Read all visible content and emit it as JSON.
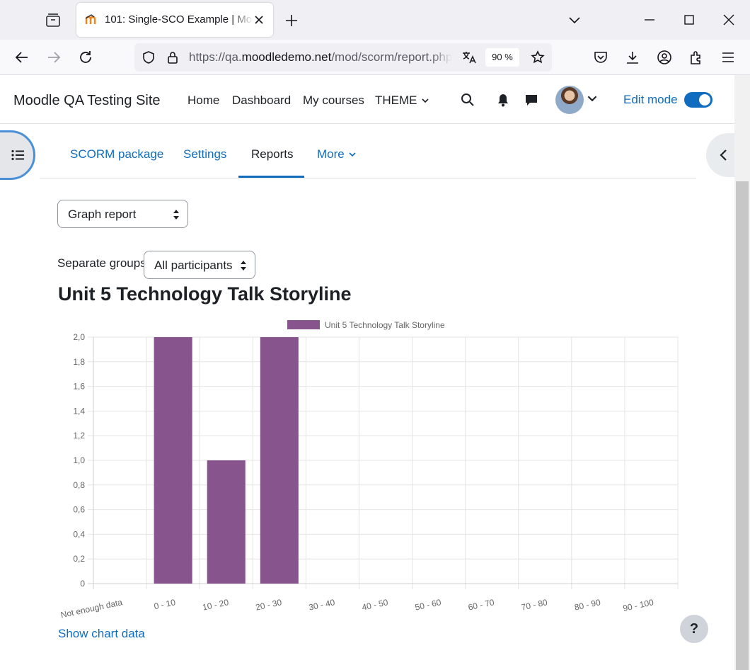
{
  "browser": {
    "tab_title": "101: Single-SCO Example | Moodle",
    "url_prefix": "https://qa.",
    "url_domain": "moodledemo.net",
    "url_path": "/mod/scorm/report.php",
    "zoom": "90 %"
  },
  "site": {
    "name": "Moodle QA Testing Site",
    "nav": [
      "Home",
      "Dashboard",
      "My courses",
      "THEME"
    ],
    "edit_mode_label": "Edit mode",
    "edit_mode_on": true
  },
  "secondary_nav": {
    "items": [
      "SCORM package",
      "Settings",
      "Reports",
      "More"
    ],
    "active": "Reports"
  },
  "report_select": {
    "value": "Graph report"
  },
  "groups": {
    "label": "Separate groups",
    "value": "All participants"
  },
  "report_title": "Unit 5 Technology Talk Storyline",
  "chart_data": {
    "type": "bar",
    "categories": [
      "Not enough data",
      "0 - 10",
      "10 - 20",
      "20 - 30",
      "30 - 40",
      "40 - 50",
      "50 - 60",
      "60 - 70",
      "70 - 80",
      "80 - 90",
      "90 - 100"
    ],
    "series": [
      {
        "name": "Unit 5 Technology Talk Storyline",
        "values": [
          0,
          2,
          1,
          2,
          0,
          0,
          0,
          0,
          0,
          0,
          0
        ],
        "color": "#88548e"
      }
    ],
    "ylim": [
      0,
      2
    ],
    "yticks": [
      "0",
      "0,2",
      "0,4",
      "0,6",
      "0,8",
      "1,0",
      "1,2",
      "1,4",
      "1,6",
      "1,8",
      "2,0"
    ],
    "grid": true,
    "legend": "top"
  },
  "show_chart_data": "Show chart data",
  "help_label": "?"
}
